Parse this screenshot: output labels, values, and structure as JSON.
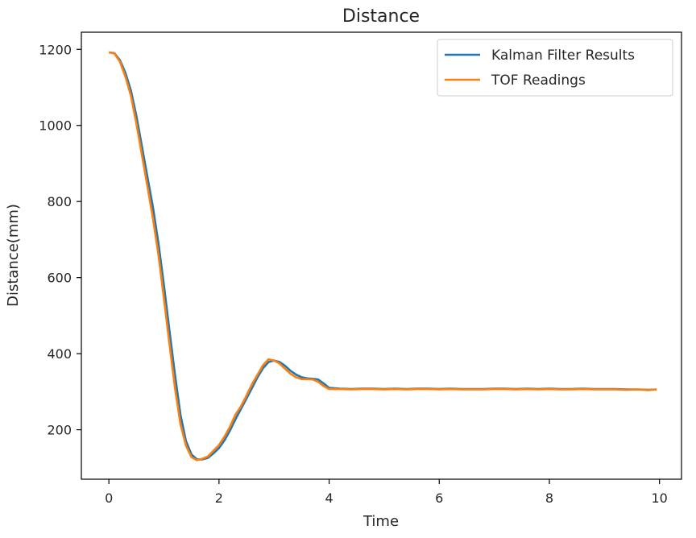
{
  "chart_data": {
    "type": "line",
    "title": "Distance",
    "xlabel": "Time",
    "ylabel": "Distance(mm)",
    "xlim": [
      -0.5,
      10.4
    ],
    "ylim": [
      70,
      1245
    ],
    "xticks": [
      0,
      2,
      4,
      6,
      8,
      10
    ],
    "xtick_labels": [
      "0",
      "2",
      "4",
      "6",
      "8",
      "10"
    ],
    "yticks": [
      200,
      400,
      600,
      800,
      1000,
      1200
    ],
    "ytick_labels": [
      "200",
      "400",
      "600",
      "800",
      "1000",
      "1200"
    ],
    "grid": false,
    "legend_position": "top-right",
    "series": [
      {
        "name": "Kalman Filter Results",
        "color": "#1f77b4",
        "x": [
          0,
          0.1,
          0.2,
          0.3,
          0.4,
          0.5,
          0.6,
          0.7,
          0.8,
          0.9,
          1.0,
          1.1,
          1.2,
          1.3,
          1.4,
          1.5,
          1.6,
          1.7,
          1.8,
          1.9,
          2.0,
          2.1,
          2.2,
          2.3,
          2.4,
          2.5,
          2.6,
          2.7,
          2.8,
          2.9,
          3.0,
          3.1,
          3.2,
          3.3,
          3.4,
          3.5,
          3.6,
          3.7,
          3.8,
          3.9,
          4.0,
          4.2,
          4.4,
          4.6,
          4.8,
          5.0,
          5.2,
          5.4,
          5.6,
          5.8,
          6.0,
          6.2,
          6.4,
          6.6,
          6.8,
          7.0,
          7.2,
          7.4,
          7.6,
          7.8,
          8.0,
          8.2,
          8.4,
          8.6,
          8.8,
          9.0,
          9.2,
          9.4,
          9.6,
          9.8,
          9.95
        ],
        "y": [
          1192,
          1190,
          1172,
          1138,
          1092,
          1025,
          945,
          865,
          785,
          690,
          580,
          460,
          345,
          240,
          170,
          135,
          122,
          122,
          126,
          138,
          152,
          172,
          198,
          228,
          255,
          282,
          310,
          338,
          362,
          378,
          382,
          378,
          368,
          355,
          345,
          338,
          335,
          334,
          332,
          322,
          310,
          308,
          307,
          308,
          308,
          307,
          308,
          307,
          308,
          308,
          307,
          308,
          307,
          307,
          307,
          308,
          308,
          307,
          308,
          307,
          308,
          307,
          307,
          308,
          307,
          307,
          307,
          306,
          306,
          305,
          306
        ]
      },
      {
        "name": "TOF Readings",
        "color": "#ff7f0e",
        "x": [
          0,
          0.1,
          0.2,
          0.3,
          0.4,
          0.5,
          0.6,
          0.7,
          0.8,
          0.9,
          1.0,
          1.1,
          1.2,
          1.3,
          1.4,
          1.5,
          1.6,
          1.7,
          1.8,
          1.9,
          2.0,
          2.1,
          2.2,
          2.3,
          2.4,
          2.5,
          2.6,
          2.7,
          2.8,
          2.9,
          3.0,
          3.1,
          3.2,
          3.3,
          3.4,
          3.5,
          3.6,
          3.7,
          3.8,
          3.9,
          4.0,
          4.2,
          4.4,
          4.6,
          4.8,
          5.0,
          5.2,
          5.4,
          5.6,
          5.8,
          6.0,
          6.2,
          6.4,
          6.6,
          6.8,
          7.0,
          7.2,
          7.4,
          7.6,
          7.8,
          8.0,
          8.2,
          8.4,
          8.6,
          8.8,
          9.0,
          9.2,
          9.4,
          9.6,
          9.8,
          9.95
        ],
        "y": [
          1192,
          1189,
          1168,
          1128,
          1078,
          1005,
          922,
          840,
          755,
          660,
          545,
          425,
          310,
          215,
          158,
          128,
          120,
          124,
          130,
          145,
          160,
          182,
          208,
          240,
          262,
          290,
          320,
          345,
          370,
          385,
          382,
          374,
          360,
          347,
          338,
          333,
          333,
          332,
          326,
          315,
          307,
          307,
          306,
          307,
          307,
          306,
          307,
          306,
          307,
          307,
          306,
          307,
          306,
          306,
          306,
          307,
          307,
          306,
          307,
          306,
          307,
          306,
          306,
          307,
          306,
          306,
          306,
          305,
          306,
          304,
          306
        ]
      }
    ]
  }
}
